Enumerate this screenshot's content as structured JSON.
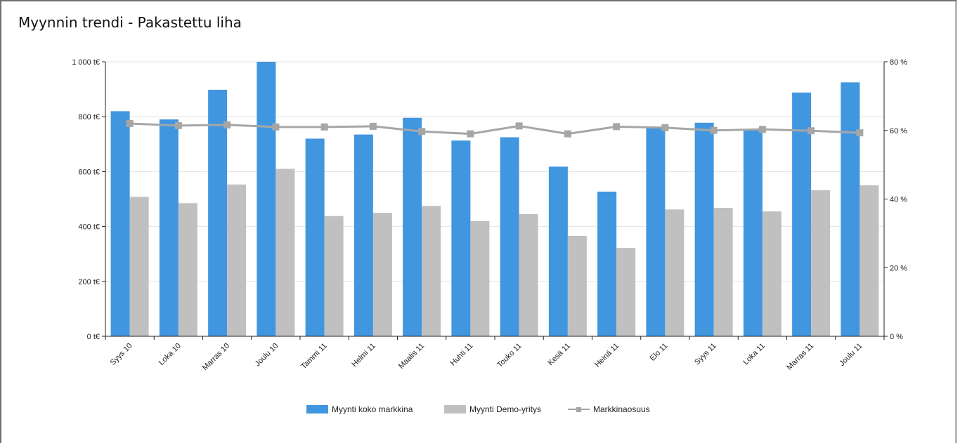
{
  "chart_data": {
    "type": "bar",
    "title": "Myynnin trendi - Pakastettu liha",
    "categories": [
      "Syys 10",
      "Loka 10",
      "Marras 10",
      "Joulu 10",
      "Tammi 11",
      "Helmi 11",
      "Maalis 11",
      "Huhti 11",
      "Touko 11",
      "Kesä 11",
      "Heinä 11",
      "Elo 11",
      "Syys 11",
      "Loka 11",
      "Marras 11",
      "Joulu 11"
    ],
    "series": [
      {
        "name": "Myynti koko markkina",
        "kind": "bar",
        "axis": "left",
        "color": "#4196e0",
        "values": [
          820,
          790,
          898,
          1000,
          720,
          735,
          796,
          713,
          725,
          618,
          527,
          760,
          778,
          755,
          888,
          925
        ]
      },
      {
        "name": "Myynti Demo-yritys",
        "kind": "bar",
        "axis": "left",
        "color": "#c0c0c0",
        "values": [
          508,
          485,
          553,
          610,
          438,
          450,
          475,
          420,
          445,
          366,
          322,
          462,
          468,
          455,
          532,
          550
        ]
      },
      {
        "name": "Markkinaosuus",
        "kind": "line",
        "axis": "right",
        "color": "#a6a6a6",
        "values": [
          62,
          61.4,
          61.6,
          61,
          61,
          61.2,
          59.7,
          59,
          61.3,
          59,
          61.1,
          60.8,
          60,
          60.3,
          59.9,
          59.3
        ]
      }
    ],
    "y_left": {
      "min": 0,
      "max": 1000,
      "ticks": [
        0,
        200,
        400,
        600,
        800,
        1000
      ],
      "tick_labels": [
        "0 t€",
        "200 t€",
        "400 t€",
        "600 t€",
        "800 t€",
        "1 000 t€"
      ]
    },
    "y_right": {
      "min": 0,
      "max": 80,
      "ticks": [
        0,
        20,
        40,
        60,
        80
      ],
      "tick_labels": [
        "0 %",
        "20 %",
        "40 %",
        "60 %",
        "80 %"
      ]
    },
    "grid": true,
    "legend_position": "bottom-center"
  }
}
